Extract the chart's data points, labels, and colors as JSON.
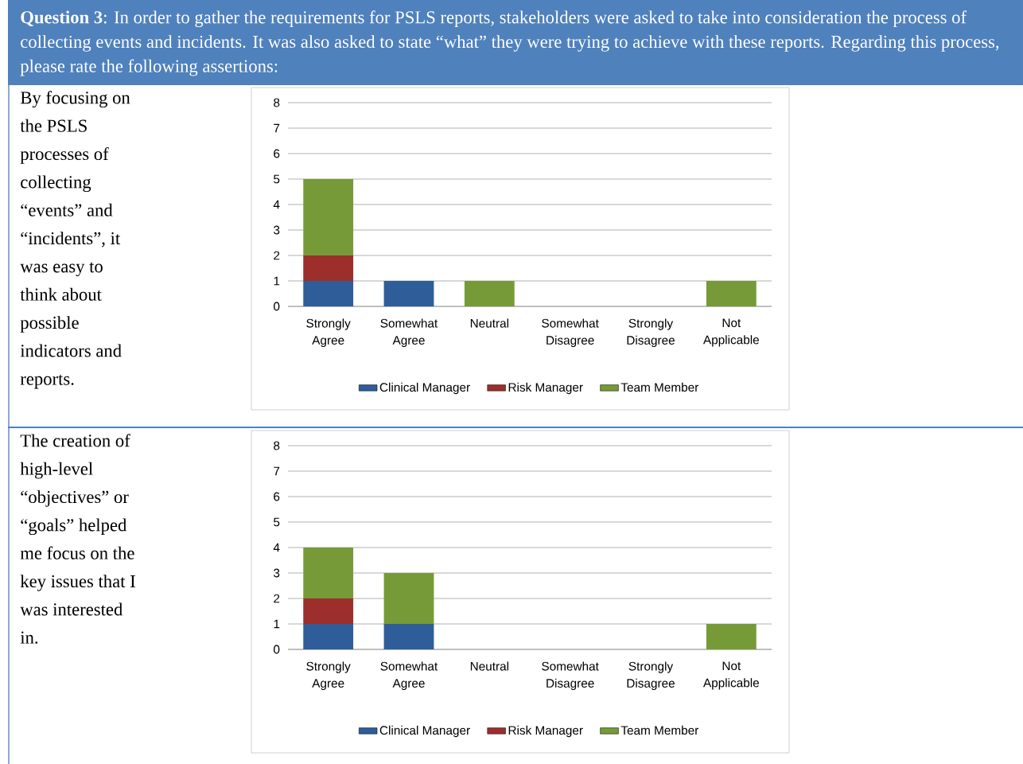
{
  "chart_data": [
    {
      "type": "bar",
      "stacked": true,
      "annotations": [
        "**Question 3**: In order to gather the requirements for PSLS reports, stakeholders were asked to take into consideration the process of collecting events and incidents. It was also asked to state “what” they were trying to achieve with these reports. Regarding this process, please rate the following assertions:",
        "By focusing on the PSLS processes of collecting “events” and “incidents”, it was easy to think about possible indicators and reports."
      ],
      "categories": [
        "Strongly Agree",
        "Somewhat Agree",
        "Neutral",
        "Somewhat Disagree",
        "Strongly Disagree",
        "Not Applicable"
      ],
      "series": [
        {
          "name": "Clinical Manager",
          "color": "#2e5d9a",
          "values": [
            1,
            1,
            0,
            0,
            0,
            0
          ]
        },
        {
          "name": "Risk Manager",
          "color": "#9c2f2c",
          "values": [
            1,
            0,
            0,
            0,
            0,
            0
          ]
        },
        {
          "name": "Team Member",
          "color": "#779a38",
          "values": [
            3,
            0,
            1,
            0,
            0,
            1
          ]
        }
      ],
      "ylim": [
        0,
        8
      ],
      "yticks": [
        0,
        1,
        2,
        3,
        4,
        5,
        6,
        7,
        8
      ],
      "grid": "y",
      "legend": "bottom"
    },
    {
      "type": "bar",
      "stacked": true,
      "annotations": [
        "The creation of high-level “objectives” or “goals” helped me focus on the key issues that I was interested in."
      ],
      "categories": [
        "Strongly Agree",
        "Somewhat Agree",
        "Neutral",
        "Somewhat Disagree",
        "Strongly Disagree",
        "Not Applicable"
      ],
      "series": [
        {
          "name": "Clinical Manager",
          "color": "#2e5d9a",
          "values": [
            1,
            1,
            0,
            0,
            0,
            0
          ]
        },
        {
          "name": "Risk Manager",
          "color": "#9c2f2c",
          "values": [
            1,
            0,
            0,
            0,
            0,
            0
          ]
        },
        {
          "name": "Team Member",
          "color": "#779a38",
          "values": [
            2,
            2,
            0,
            0,
            0,
            1
          ]
        }
      ],
      "ylim": [
        0,
        8
      ],
      "yticks": [
        0,
        1,
        2,
        3,
        4,
        5,
        6,
        7,
        8
      ],
      "grid": "y",
      "legend": "bottom"
    }
  ]
}
